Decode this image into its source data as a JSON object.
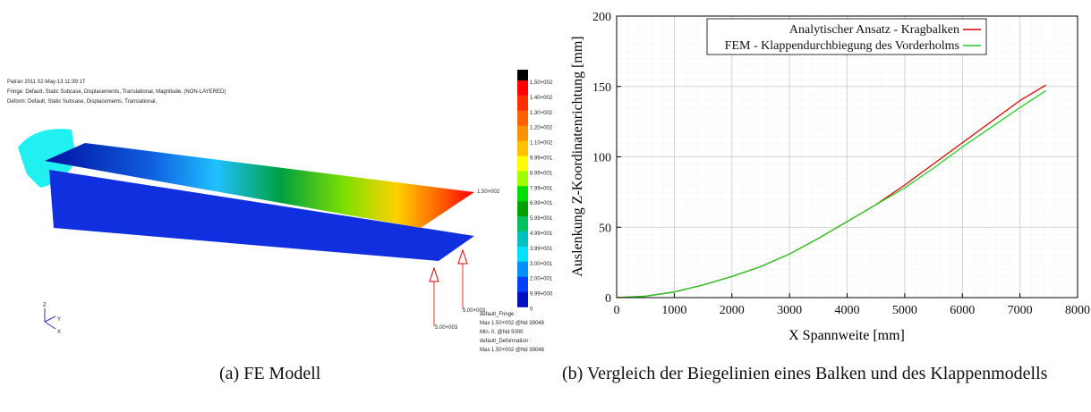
{
  "figure_a": {
    "header_lines": [
      "Patran 2011 02-May-13 11:39:17",
      "Fringe: Default, Static Subcase, Displacements, Translational, Magnitude, (NON-LAYERED)",
      "Deform: Default, Static Subcase, Displacements, Translational,"
    ],
    "colorbar_labels": [
      "1.50+002",
      "1.40+002",
      "1.30+002",
      "1.20+002",
      "1.10+002",
      "9.99+001",
      "8.99+001",
      "7.99+001",
      "6.99+001",
      "5.99+001",
      "4.99+001",
      "3.99+001",
      "3.00+001",
      "2.00+001",
      "9.99+000",
      "0"
    ],
    "tip_label": "1.50+002",
    "load_labels": [
      "5.00+003",
      "5.00+003"
    ],
    "info_lines": [
      "default_Fringe :",
      "Max 1.50+002 @Nd 39048",
      "Min. 0. @Nd 5000",
      "default_Deformation :",
      "Max 1.50+002 @Nd 39048"
    ],
    "axis_labels": [
      "Z",
      "Y",
      "X"
    ],
    "caption": "(a)  FE Modell"
  },
  "chart_data": {
    "type": "line",
    "xlabel": "X Spannweite [mm]",
    "ylabel": "Auslenkung Z-Koordinatenrichtung [mm]",
    "x": [
      0,
      500,
      1000,
      1500,
      2000,
      2500,
      3000,
      3500,
      4000,
      4500,
      5000,
      5500,
      6000,
      6500,
      7000,
      7450
    ],
    "series": [
      {
        "name": "Analytischer Ansatz - Kragbalken",
        "color": "#e00000",
        "values": [
          0,
          1,
          4,
          9,
          15,
          22,
          31,
          42,
          54,
          66,
          80,
          95,
          110,
          125,
          140,
          151
        ]
      },
      {
        "name": "FEM - Klappendurchbiegung des Vorderholms",
        "color": "#22cc22",
        "values": [
          0,
          1,
          4,
          9,
          15,
          22,
          31,
          42,
          54,
          66,
          78,
          92,
          107,
          121,
          135,
          147
        ]
      }
    ],
    "xlim": [
      0,
      8000
    ],
    "ylim": [
      0,
      200
    ],
    "xticks": [
      0,
      1000,
      2000,
      3000,
      4000,
      5000,
      6000,
      7000,
      8000
    ],
    "yticks": [
      0,
      50,
      100,
      150,
      200
    ],
    "grid": true,
    "legend": "top"
  },
  "caption_b": "(b)  Vergleich der Biegelinien eines Balken und des Klappenmodells"
}
